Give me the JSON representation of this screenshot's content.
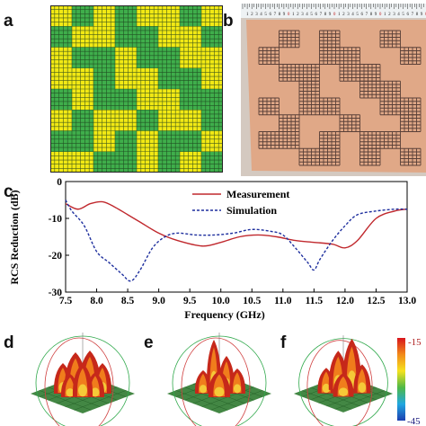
{
  "labels": {
    "a": "a",
    "b": "b",
    "c": "c",
    "d": "d",
    "e": "e",
    "f": "f"
  },
  "panel_a": {
    "pattern": [
      [
        1,
        0,
        1,
        0,
        1,
        1,
        0,
        1
      ],
      [
        0,
        1,
        1,
        0,
        0,
        1,
        1,
        0
      ],
      [
        1,
        0,
        0,
        1,
        0,
        0,
        1,
        1
      ],
      [
        1,
        1,
        0,
        1,
        1,
        0,
        0,
        1
      ],
      [
        0,
        1,
        0,
        0,
        1,
        1,
        0,
        0
      ],
      [
        1,
        0,
        1,
        1,
        0,
        1,
        1,
        0
      ],
      [
        0,
        0,
        1,
        0,
        1,
        0,
        0,
        1
      ],
      [
        1,
        1,
        0,
        0,
        1,
        0,
        1,
        0
      ]
    ],
    "colors": {
      "yellow": "#f2e914",
      "green": "#3fae4b",
      "grid": "#1a3a1a"
    }
  },
  "panel_b": {
    "ruler_digits": [
      "1",
      "2",
      "3",
      "4",
      "5",
      "6",
      "7",
      "8",
      "9",
      "0",
      "1",
      "2",
      "3",
      "4",
      "5",
      "6",
      "7",
      "8",
      "9",
      "0",
      "1",
      "2",
      "3",
      "4",
      "5",
      "6",
      "7",
      "8",
      "9",
      "0",
      "1",
      "2",
      "3",
      "4",
      "5",
      "6",
      "7",
      "8",
      "9",
      "0"
    ],
    "colors": {
      "board": "#e0a887",
      "mesh": "#5a4038",
      "ruler": "#eef2f4"
    }
  },
  "chart_data": {
    "type": "line",
    "xlabel": "Frequency (GHz)",
    "ylabel": "RCS Reduction (dB)",
    "xlim": [
      7.5,
      13.0
    ],
    "ylim": [
      -30,
      0
    ],
    "xticks": [
      "7.5",
      "8.0",
      "8.5",
      "9.0",
      "9.5",
      "10.0",
      "10.5",
      "11.0",
      "11.5",
      "12.0",
      "12.5",
      "13.0"
    ],
    "yticks": [
      "0",
      "-10",
      "-20",
      "-30"
    ],
    "legend_position": "top-right",
    "series": [
      {
        "name": "Measurement",
        "color": "#c0282d",
        "style": "solid",
        "x": [
          7.5,
          7.7,
          7.9,
          8.1,
          8.3,
          8.5,
          8.7,
          9.0,
          9.3,
          9.7,
          10.0,
          10.3,
          10.6,
          10.9,
          11.2,
          11.5,
          11.8,
          12.0,
          12.2,
          12.5,
          12.8,
          13.0
        ],
        "y": [
          -6,
          -7.5,
          -6,
          -5.5,
          -7,
          -9,
          -11,
          -14,
          -16,
          -17.5,
          -16.5,
          -15,
          -14.5,
          -15,
          -16,
          -16.5,
          -17,
          -18,
          -16,
          -10,
          -8,
          -7.5
        ]
      },
      {
        "name": "Simulation",
        "color": "#1e2f9e",
        "style": "dashed",
        "x": [
          7.5,
          7.6,
          7.8,
          8.0,
          8.2,
          8.4,
          8.55,
          8.7,
          8.9,
          9.1,
          9.3,
          9.6,
          9.9,
          10.2,
          10.5,
          10.8,
          11.0,
          11.2,
          11.4,
          11.5,
          11.6,
          11.8,
          12.0,
          12.2,
          12.5,
          12.8,
          13.0
        ],
        "y": [
          -5,
          -8,
          -12,
          -19,
          -22,
          -25,
          -27,
          -24,
          -18,
          -15,
          -14,
          -14.5,
          -14.5,
          -14,
          -13,
          -13.5,
          -14.5,
          -18,
          -22,
          -24,
          -21,
          -16,
          -12,
          -9,
          -8,
          -7.5,
          -7.5
        ]
      }
    ]
  },
  "colorbar": {
    "top_label": "-15",
    "bottom_label": "-45",
    "stops": [
      "#d8141c",
      "#f28a1a",
      "#f5e21e",
      "#4fb847",
      "#21a7e0",
      "#1c3fb0"
    ]
  },
  "patterns_3d": {
    "plane": "#2f7a30",
    "lobe_dark": "#c6281a",
    "lobe_mid": "#f07d1c",
    "lobe_light": "#f5d23c",
    "axis_red": "#d04040",
    "axis_green": "#2ea84a"
  }
}
